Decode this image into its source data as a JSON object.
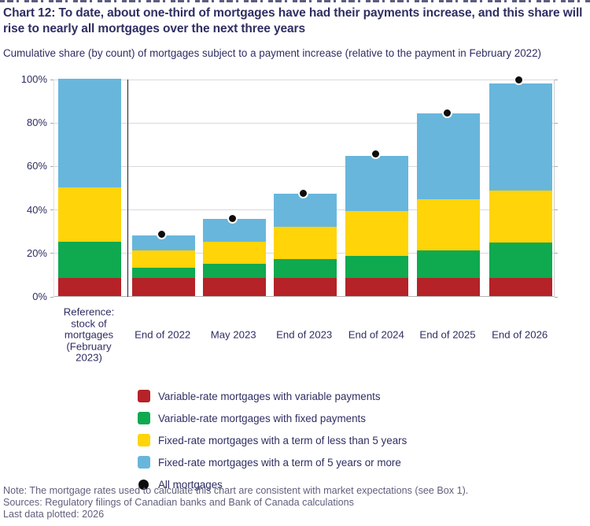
{
  "header": {
    "title": "Chart 12: To date, about one-third of mortgages have had their payments increase, and this share will rise to nearly all mortgages over the next three years",
    "subtitle": "Cumulative share (by count) of mortgages subject to a payment increase (relative to the payment in February 2022)"
  },
  "chart_data": {
    "type": "bar",
    "stacked": true,
    "title": "Chart 12",
    "ylim": [
      0,
      100
    ],
    "yticks": [
      0,
      20,
      40,
      60,
      80,
      100
    ],
    "ytick_labels": [
      "0%",
      "20%",
      "40%",
      "60%",
      "80%",
      "100%"
    ],
    "grid": true,
    "legend_position": "bottom",
    "categories": [
      "Reference: stock of mortgages (February 2023)",
      "End of 2022",
      "May 2023",
      "End of 2023",
      "End of 2024",
      "End of 2025",
      "End of 2026"
    ],
    "series": [
      {
        "name": "Variable-rate mortgages with variable payments",
        "color": "#b52228",
        "values": [
          8.5,
          8.5,
          8.5,
          8.5,
          8.5,
          8.5,
          8.5
        ]
      },
      {
        "name": "Variable-rate mortgages with fixed payments",
        "color": "#0fa950",
        "values": [
          16.5,
          4.5,
          6.5,
          8.5,
          10,
          12.5,
          16
        ]
      },
      {
        "name": "Fixed-rate mortgages with a term of less than 5 years",
        "color": "#ffd408",
        "values": [
          25,
          8,
          10,
          15,
          20.5,
          23.5,
          24
        ]
      },
      {
        "name": "Fixed-rate mortgages with a term of 5 years or more",
        "color": "#68b6dc",
        "values": [
          50,
          7,
          10.5,
          15,
          25.5,
          39.5,
          49.5
        ]
      }
    ],
    "dot_series": {
      "name": "All mortgages",
      "color": "#0d0d0d",
      "values": [
        null,
        28,
        35.5,
        47,
        65,
        84,
        99
      ]
    }
  },
  "footer": {
    "note": "Note: The mortgage rates used to calculate this chart are consistent with market expectations (see Box 1).",
    "sources": "Sources: Regulatory filings of Canadian banks and Bank of Canada calculations",
    "last_plotted": "Last data plotted: 2026"
  }
}
